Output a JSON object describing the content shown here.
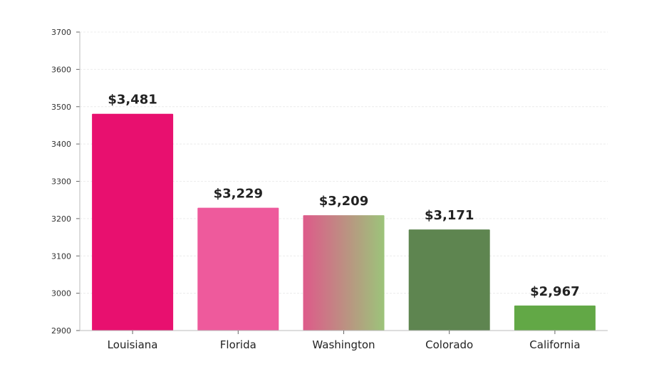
{
  "chart_data": {
    "type": "bar",
    "categories": [
      "Louisiana",
      "Florida",
      "Washington",
      "Colorado",
      "California"
    ],
    "values": [
      3481,
      3229,
      3209,
      3171,
      2967
    ],
    "data_labels": [
      "$3,481",
      "$3,229",
      "$3,209",
      "$3,171",
      "$2,967"
    ],
    "colors": [
      "#e8106f",
      "#ee5a9c",
      [
        "#de5a8a",
        "#9cc47a"
      ],
      "#5e8550",
      "#62a846"
    ],
    "title": "",
    "xlabel": "",
    "ylabel": "",
    "ylim": [
      2900,
      3700
    ],
    "yticks": [
      "2900",
      "3000",
      "3100",
      "3200",
      "3300",
      "3400",
      "3500",
      "3600",
      "3700"
    ],
    "grid": "horizontal dashed, light",
    "legend": "none"
  }
}
